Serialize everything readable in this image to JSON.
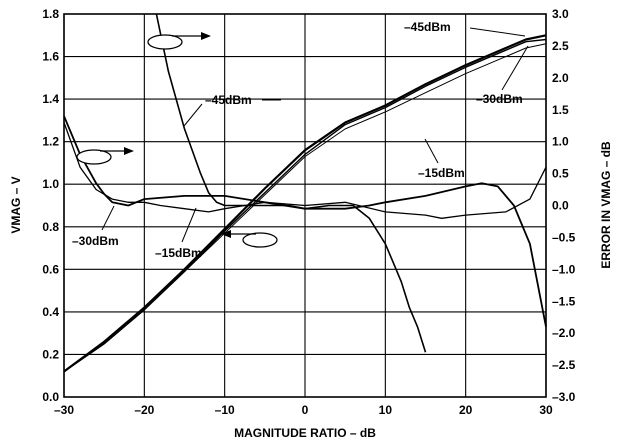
{
  "chart_data": {
    "type": "line",
    "title": "",
    "xlabel": "MAGNITUDE RATIO – dB",
    "ylabel": "VMAG – V",
    "ylabel_right": "ERROR IN VMAG – dB",
    "xlim": [
      -30,
      30
    ],
    "ylim": [
      0,
      1.8
    ],
    "ylim_right": [
      -3,
      3
    ],
    "grid": true,
    "x_ticks": [
      -30,
      -20,
      -10,
      0,
      10,
      20,
      30
    ],
    "x_tick_labels": [
      "–30",
      "–20",
      "–10",
      "0",
      "10",
      "20",
      "30"
    ],
    "y_ticks": [
      0,
      0.2,
      0.4,
      0.6,
      0.8,
      1.0,
      1.2,
      1.4,
      1.6,
      1.8
    ],
    "y_tick_labels": [
      "0.0",
      "0.2",
      "0.4",
      "0.6",
      "0.8",
      "1.0",
      "1.2",
      "1.4",
      "1.6",
      "1.8"
    ],
    "y2_ticks": [
      -3,
      -2.5,
      -2,
      -1.5,
      -1,
      -0.5,
      0,
      0.5,
      1,
      1.5,
      2,
      2.5,
      3
    ],
    "y2_tick_labels": [
      "–3.0",
      "–2.5",
      "–2.0",
      "–1.5",
      "–1.0",
      "–0.5",
      "0.0",
      "0.5",
      "1.0",
      "1.5",
      "2.0",
      "2.5",
      "3.0"
    ],
    "series": [
      {
        "name": "–45dBm",
        "axis": "left",
        "x": [
          -30,
          -25,
          -20,
          -15,
          -10,
          -5,
          0,
          5,
          10,
          15,
          20,
          25,
          27.5,
          30
        ],
        "y": [
          0.12,
          0.26,
          0.42,
          0.6,
          0.79,
          0.98,
          1.16,
          1.29,
          1.37,
          1.47,
          1.56,
          1.64,
          1.68,
          1.7
        ]
      },
      {
        "name": "–30dBm",
        "axis": "left",
        "x": [
          -30,
          -25,
          -20,
          -15,
          -10,
          -5,
          0,
          5,
          10,
          15,
          20,
          25,
          27.5,
          30
        ],
        "y": [
          0.12,
          0.25,
          0.41,
          0.59,
          0.78,
          0.96,
          1.14,
          1.28,
          1.36,
          1.46,
          1.55,
          1.63,
          1.67,
          1.68
        ]
      },
      {
        "name": "–15dBm",
        "axis": "left",
        "x": [
          -30,
          -25,
          -20,
          -15,
          -10,
          -5,
          0,
          5,
          10,
          15,
          20,
          25,
          27.5,
          30
        ],
        "y": [
          0.12,
          0.25,
          0.41,
          0.59,
          0.77,
          0.95,
          1.13,
          1.26,
          1.34,
          1.43,
          1.52,
          1.6,
          1.64,
          1.66
        ]
      },
      {
        "name": "–45dBm",
        "axis": "right",
        "x": [
          -18.5,
          -17,
          -15,
          -13,
          -12,
          -11,
          -10,
          -8,
          -5,
          -2,
          0,
          3,
          6,
          8,
          10,
          11,
          12,
          13,
          14,
          15
        ],
        "y": [
          3.0,
          2.1,
          1.2,
          0.5,
          0.2,
          0.05,
          0.0,
          0.0,
          0.0,
          0.0,
          -0.05,
          0.0,
          0.0,
          -0.2,
          -0.6,
          -0.9,
          -1.2,
          -1.6,
          -1.9,
          -2.3
        ]
      },
      {
        "name": "–30dBm",
        "axis": "right",
        "x": [
          -30,
          -28,
          -26,
          -25,
          -24,
          -22,
          -20,
          -15,
          -10,
          -5,
          0,
          5,
          8,
          10,
          15,
          20,
          22,
          24,
          26,
          28,
          30
        ],
        "y": [
          1.4,
          0.8,
          0.35,
          0.18,
          0.05,
          0.0,
          0.1,
          0.15,
          0.15,
          0.05,
          -0.05,
          -0.05,
          0.0,
          0.05,
          0.15,
          0.3,
          0.35,
          0.3,
          0.0,
          -0.6,
          -1.9
        ]
      },
      {
        "name": "–15dBm",
        "axis": "right",
        "x": [
          -30,
          -28,
          -26,
          -24,
          -22,
          -20,
          -18,
          -15,
          -12,
          -10,
          -5,
          0,
          5,
          10,
          15,
          17,
          20,
          25,
          28,
          30
        ],
        "y": [
          1.3,
          0.6,
          0.25,
          0.1,
          0.05,
          0.05,
          0.0,
          -0.05,
          -0.1,
          -0.05,
          0.05,
          0.0,
          0.05,
          -0.1,
          -0.15,
          -0.2,
          -0.15,
          -0.1,
          0.1,
          0.6
        ]
      }
    ],
    "annotations": [
      "–45dBm",
      "–30dBm",
      "–15dBm",
      "–45dBm",
      "–30dBm",
      "–15dBm"
    ]
  }
}
